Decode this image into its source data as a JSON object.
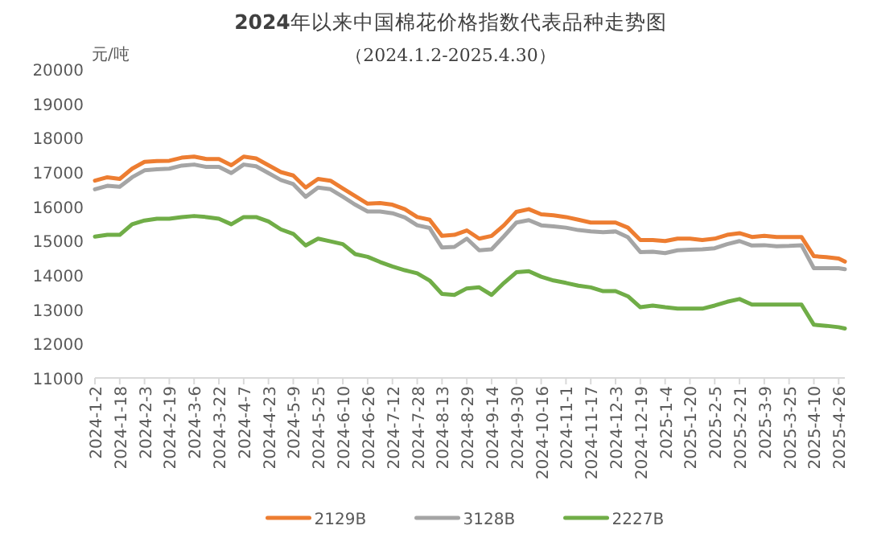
{
  "chart_data": {
    "type": "line",
    "title": "**2024**年以来中国棉花价格指数代表品种走势图",
    "subtitle": "（2024.1.2-2025.4.30）",
    "ylabel": "元/吨",
    "x": [
      "2024-01-02",
      "2024-01-10",
      "2024-01-18",
      "2024-01-26",
      "2024-02-03",
      "2024-02-11",
      "2024-02-19",
      "2024-02-27",
      "2024-03-06",
      "2024-03-14",
      "2024-03-22",
      "2024-03-30",
      "2024-04-07",
      "2024-04-15",
      "2024-04-23",
      "2024-05-01",
      "2024-05-09",
      "2024-05-17",
      "2024-05-25",
      "2024-06-02",
      "2024-06-10",
      "2024-06-18",
      "2024-06-26",
      "2024-07-04",
      "2024-07-12",
      "2024-07-20",
      "2024-07-28",
      "2024-08-05",
      "2024-08-13",
      "2024-08-21",
      "2024-08-29",
      "2024-09-06",
      "2024-09-14",
      "2024-09-22",
      "2024-09-30",
      "2024-10-08",
      "2024-10-16",
      "2024-10-24",
      "2024-11-01",
      "2024-11-09",
      "2024-11-17",
      "2024-11-25",
      "2024-12-03",
      "2024-12-11",
      "2024-12-19",
      "2024-12-27",
      "2025-01-04",
      "2025-01-12",
      "2025-01-20",
      "2025-01-28",
      "2025-02-05",
      "2025-02-13",
      "2025-02-21",
      "2025-03-01",
      "2025-03-09",
      "2025-03-17",
      "2025-03-25",
      "2025-04-02",
      "2025-04-10",
      "2025-04-18",
      "2025-04-26",
      "2025-04-30"
    ],
    "series": [
      {
        "name": "2129B",
        "color": "#ed7d31",
        "values": [
          16750,
          16850,
          16800,
          17100,
          17300,
          17320,
          17330,
          17420,
          17450,
          17380,
          17380,
          17200,
          17450,
          17400,
          17200,
          17000,
          16900,
          16550,
          16800,
          16750,
          16520,
          16300,
          16080,
          16100,
          16050,
          15920,
          15690,
          15610,
          15140,
          15170,
          15300,
          15060,
          15140,
          15450,
          15840,
          15920,
          15770,
          15740,
          15690,
          15610,
          15530,
          15530,
          15530,
          15380,
          15020,
          15020,
          14990,
          15060,
          15060,
          15020,
          15060,
          15170,
          15220,
          15110,
          15140,
          15110,
          15110,
          15110,
          14550,
          14520,
          14480,
          14390
        ]
      },
      {
        "name": "3128B",
        "color": "#a5a5a5",
        "values": [
          16500,
          16600,
          16570,
          16850,
          17050,
          17080,
          17100,
          17190,
          17220,
          17150,
          17150,
          16970,
          17220,
          17170,
          16970,
          16770,
          16650,
          16280,
          16550,
          16500,
          16280,
          16050,
          15850,
          15850,
          15800,
          15680,
          15450,
          15370,
          14800,
          14820,
          15060,
          14720,
          14750,
          15130,
          15530,
          15600,
          15450,
          15420,
          15380,
          15310,
          15270,
          15250,
          15270,
          15100,
          14670,
          14680,
          14640,
          14720,
          14740,
          14750,
          14780,
          14900,
          14990,
          14860,
          14870,
          14840,
          14850,
          14870,
          14200,
          14200,
          14200,
          14170
        ]
      },
      {
        "name": "2227B",
        "color": "#70ad47",
        "values": [
          15120,
          15170,
          15170,
          15480,
          15590,
          15640,
          15640,
          15690,
          15720,
          15690,
          15640,
          15480,
          15690,
          15690,
          15560,
          15330,
          15200,
          14860,
          15060,
          14980,
          14900,
          14610,
          14530,
          14380,
          14250,
          14140,
          14050,
          13840,
          13450,
          13420,
          13610,
          13640,
          13420,
          13770,
          14080,
          14110,
          13950,
          13840,
          13770,
          13690,
          13640,
          13530,
          13530,
          13380,
          13060,
          13110,
          13060,
          13020,
          13020,
          13020,
          13110,
          13220,
          13300,
          13140,
          13140,
          13140,
          13140,
          13140,
          12550,
          12520,
          12480,
          12440
        ]
      }
    ],
    "xlim": [
      "2024-01-02",
      "2025-04-30"
    ],
    "xticks": [
      {
        "value": "2024-01-02",
        "label": "2024-1-2"
      },
      {
        "value": "2024-01-18",
        "label": "2024-1-18"
      },
      {
        "value": "2024-02-03",
        "label": "2024-2-3"
      },
      {
        "value": "2024-02-19",
        "label": "2024-2-19"
      },
      {
        "value": "2024-03-06",
        "label": "2024-3-6"
      },
      {
        "value": "2024-03-22",
        "label": "2024-3-22"
      },
      {
        "value": "2024-04-07",
        "label": "2024-4-7"
      },
      {
        "value": "2024-04-23",
        "label": "2024-4-23"
      },
      {
        "value": "2024-05-09",
        "label": "2024-5-9"
      },
      {
        "value": "2024-05-25",
        "label": "2024-5-25"
      },
      {
        "value": "2024-06-10",
        "label": "2024-6-10"
      },
      {
        "value": "2024-06-26",
        "label": "2024-6-26"
      },
      {
        "value": "2024-07-12",
        "label": "2024-7-12"
      },
      {
        "value": "2024-07-28",
        "label": "2024-7-28"
      },
      {
        "value": "2024-08-13",
        "label": "2024-8-13"
      },
      {
        "value": "2024-08-29",
        "label": "2024-8-29"
      },
      {
        "value": "2024-09-14",
        "label": "2024-9-14"
      },
      {
        "value": "2024-09-30",
        "label": "2024-9-30"
      },
      {
        "value": "2024-10-16",
        "label": "2024-10-16"
      },
      {
        "value": "2024-11-01",
        "label": "2024-11-1"
      },
      {
        "value": "2024-11-17",
        "label": "2024-11-17"
      },
      {
        "value": "2024-12-03",
        "label": "2024-12-3"
      },
      {
        "value": "2024-12-19",
        "label": "2024-12-19"
      },
      {
        "value": "2025-01-04",
        "label": "2025-1-4"
      },
      {
        "value": "2025-01-20",
        "label": "2025-1-20"
      },
      {
        "value": "2025-02-05",
        "label": "2025-2-5"
      },
      {
        "value": "2025-02-21",
        "label": "2025-2-21"
      },
      {
        "value": "2025-03-09",
        "label": "2025-3-9"
      },
      {
        "value": "2025-03-25",
        "label": "2025-3-25"
      },
      {
        "value": "2025-04-10",
        "label": "2025-4-10"
      },
      {
        "value": "2025-04-26",
        "label": "2025-4-26"
      }
    ],
    "ylim": [
      11000,
      20000
    ],
    "yticks": [
      11000,
      12000,
      13000,
      14000,
      15000,
      16000,
      17000,
      18000,
      19000,
      20000
    ],
    "legend": "bottom",
    "grid": false,
    "marker": "none",
    "line_style": "solid"
  }
}
